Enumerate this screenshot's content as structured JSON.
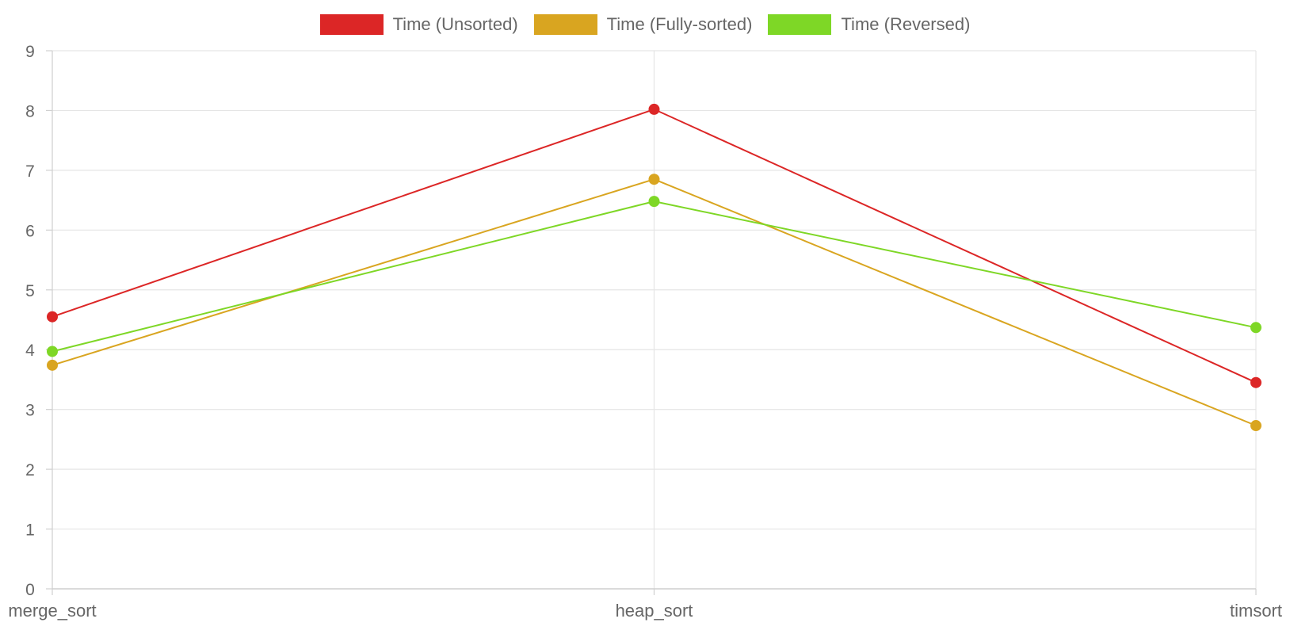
{
  "chart_data": {
    "type": "line",
    "categories": [
      "merge_sort",
      "heap_sort",
      "timsort"
    ],
    "ylim": [
      0,
      9
    ],
    "yticks": [
      0,
      1,
      2,
      3,
      4,
      5,
      6,
      7,
      8,
      9
    ],
    "grid": true,
    "legend_position": "top-center",
    "series": [
      {
        "name": "Time (Unsorted)",
        "color": "#dc2626",
        "values": [
          4.55,
          8.02,
          3.45
        ]
      },
      {
        "name": "Time (Fully-sorted)",
        "color": "#d9a520",
        "values": [
          3.74,
          6.85,
          2.73
        ]
      },
      {
        "name": "Time (Reversed)",
        "color": "#7ed726",
        "values": [
          3.97,
          6.48,
          4.37
        ]
      }
    ]
  }
}
